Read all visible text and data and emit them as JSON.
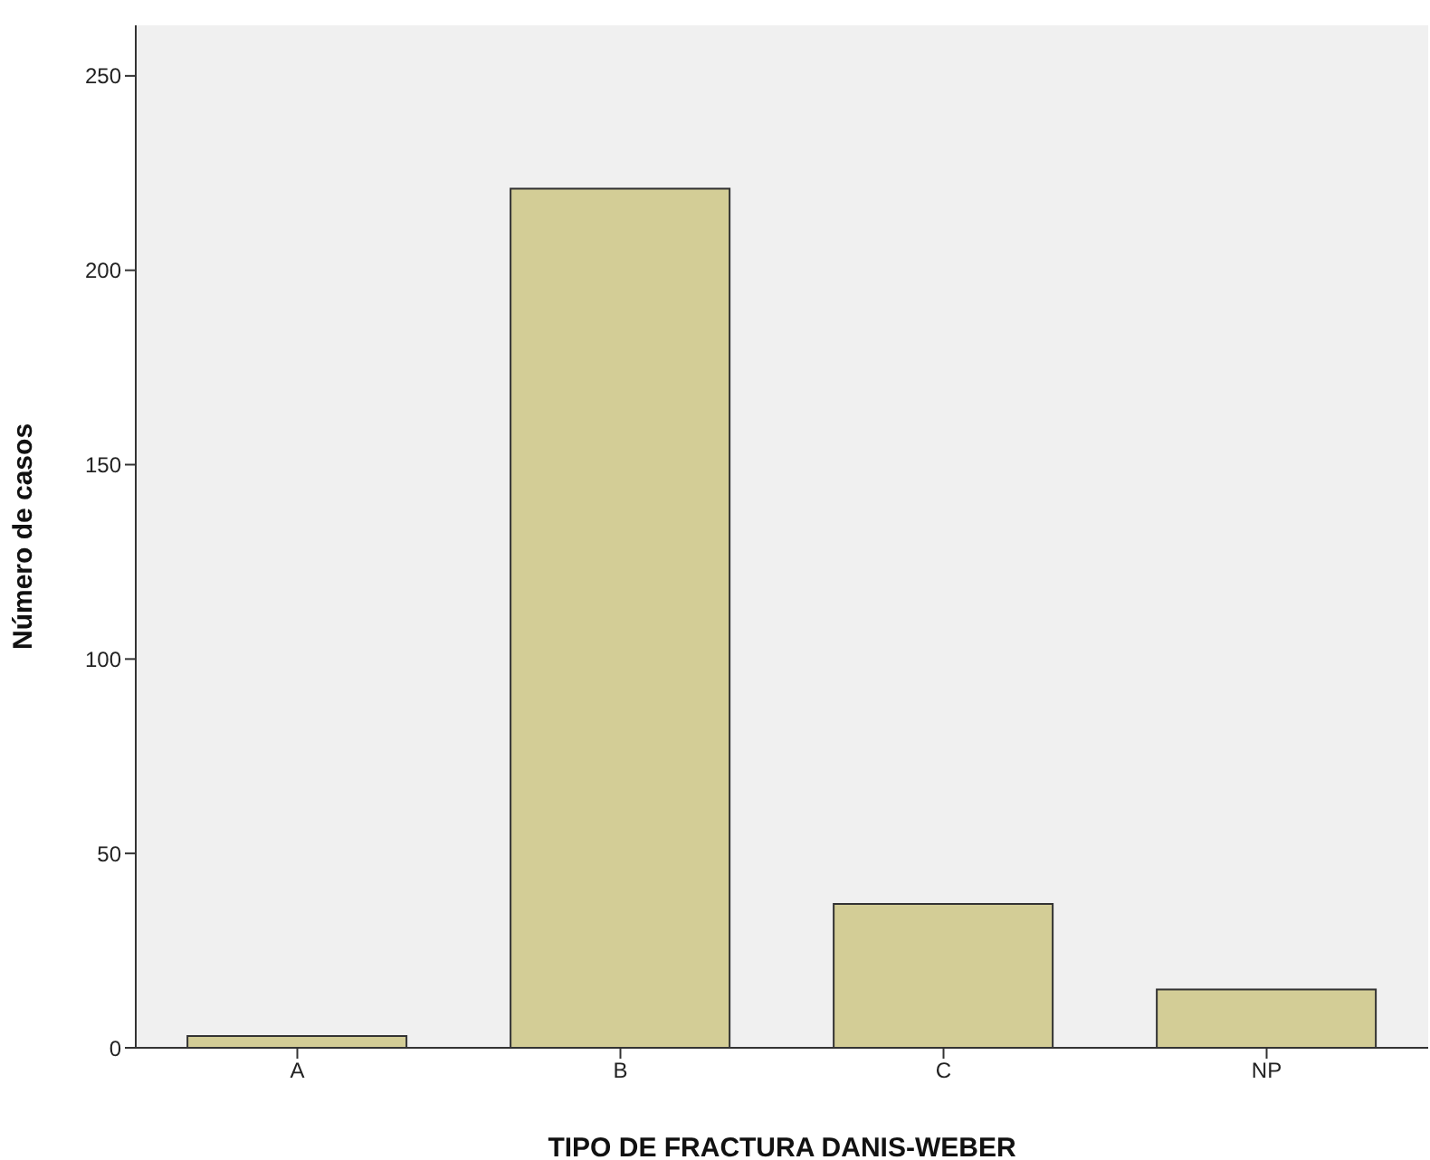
{
  "chart_data": {
    "type": "bar",
    "xlabel": "TIPO DE FRACTURA DANIS-WEBER",
    "ylabel": "Número de casos",
    "categories": [
      "A",
      "B",
      "C",
      "NP"
    ],
    "values": [
      3,
      221,
      37,
      15
    ],
    "color": "#d3cd96",
    "ylim": [
      0,
      263
    ],
    "yticks": [
      0,
      50,
      100,
      150,
      200,
      250
    ]
  }
}
